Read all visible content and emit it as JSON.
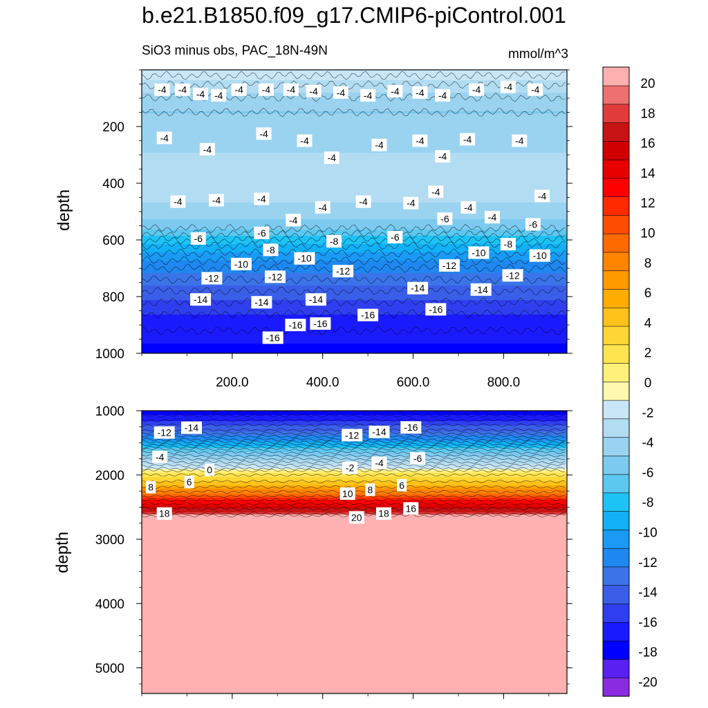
{
  "chart_data": {
    "type": "contour",
    "title": "b.e21.B1850.f09_g17.CMIP6-piControl.001",
    "subtitle": "SiO3 minus obs, PAC_18N-49N",
    "units": "mmol/m^3",
    "ylabel": "depth",
    "panels": [
      {
        "name": "upper",
        "ylim": [
          0,
          1000
        ],
        "y_inverted": true,
        "xlim": [
          0,
          940
        ],
        "yticks": [
          200,
          400,
          600,
          800,
          1000
        ],
        "xticks": [
          200,
          400,
          600,
          800
        ],
        "xtick_labels": [
          "200.0",
          "400.0",
          "600.0",
          "800.0"
        ],
        "depth_levels": [
          {
            "depth": 20,
            "value": -2
          },
          {
            "depth": 70,
            "value": -3.5
          },
          {
            "depth": 150,
            "value": -5
          },
          {
            "depth": 250,
            "value": -4
          },
          {
            "depth": 400,
            "value": -3
          },
          {
            "depth": 500,
            "value": -4
          },
          {
            "depth": 560,
            "value": -6
          },
          {
            "depth": 620,
            "value": -9
          },
          {
            "depth": 700,
            "value": -12
          },
          {
            "depth": 780,
            "value": -14
          },
          {
            "depth": 860,
            "value": -16
          },
          {
            "depth": 920,
            "value": -17
          },
          {
            "depth": 1000,
            "value": -17.5
          }
        ],
        "contour_labels": [
          {
            "x": 45,
            "depth": 70,
            "text": "-4"
          },
          {
            "x": 90,
            "depth": 70,
            "text": "-4"
          },
          {
            "x": 130,
            "depth": 85,
            "text": "-4"
          },
          {
            "x": 170,
            "depth": 90,
            "text": "-4"
          },
          {
            "x": 215,
            "depth": 70,
            "text": "-4"
          },
          {
            "x": 275,
            "depth": 70,
            "text": "-4"
          },
          {
            "x": 330,
            "depth": 70,
            "text": "-4"
          },
          {
            "x": 380,
            "depth": 75,
            "text": "-4"
          },
          {
            "x": 440,
            "depth": 80,
            "text": "-4"
          },
          {
            "x": 500,
            "depth": 90,
            "text": "-4"
          },
          {
            "x": 560,
            "depth": 75,
            "text": "-4"
          },
          {
            "x": 615,
            "depth": 80,
            "text": "-4"
          },
          {
            "x": 665,
            "depth": 90,
            "text": "-4"
          },
          {
            "x": 740,
            "depth": 70,
            "text": "-4"
          },
          {
            "x": 810,
            "depth": 60,
            "text": "-4"
          },
          {
            "x": 870,
            "depth": 70,
            "text": "-4"
          },
          {
            "x": 50,
            "depth": 240,
            "text": "-4"
          },
          {
            "x": 145,
            "depth": 280,
            "text": "-4"
          },
          {
            "x": 270,
            "depth": 225,
            "text": "-4"
          },
          {
            "x": 360,
            "depth": 250,
            "text": "-4"
          },
          {
            "x": 420,
            "depth": 310,
            "text": "-4"
          },
          {
            "x": 525,
            "depth": 265,
            "text": "-4"
          },
          {
            "x": 615,
            "depth": 250,
            "text": "-4"
          },
          {
            "x": 665,
            "depth": 305,
            "text": "-4"
          },
          {
            "x": 720,
            "depth": 245,
            "text": "-4"
          },
          {
            "x": 835,
            "depth": 250,
            "text": "-4"
          },
          {
            "x": 80,
            "depth": 465,
            "text": "-4"
          },
          {
            "x": 165,
            "depth": 460,
            "text": "-4"
          },
          {
            "x": 265,
            "depth": 455,
            "text": "-4"
          },
          {
            "x": 335,
            "depth": 530,
            "text": "-4"
          },
          {
            "x": 400,
            "depth": 485,
            "text": "-4"
          },
          {
            "x": 490,
            "depth": 465,
            "text": "-4"
          },
          {
            "x": 595,
            "depth": 470,
            "text": "-4"
          },
          {
            "x": 650,
            "depth": 430,
            "text": "-4"
          },
          {
            "x": 722,
            "depth": 485,
            "text": "-4"
          },
          {
            "x": 775,
            "depth": 520,
            "text": "-4"
          },
          {
            "x": 885,
            "depth": 445,
            "text": "-4"
          },
          {
            "x": 125,
            "depth": 595,
            "text": "-6"
          },
          {
            "x": 265,
            "depth": 575,
            "text": "-6"
          },
          {
            "x": 560,
            "depth": 590,
            "text": "-6"
          },
          {
            "x": 670,
            "depth": 525,
            "text": "-6"
          },
          {
            "x": 865,
            "depth": 545,
            "text": "-6"
          },
          {
            "x": 285,
            "depth": 635,
            "text": "-8"
          },
          {
            "x": 425,
            "depth": 605,
            "text": "-8"
          },
          {
            "x": 810,
            "depth": 615,
            "text": "-8"
          },
          {
            "x": 220,
            "depth": 685,
            "text": "-10"
          },
          {
            "x": 360,
            "depth": 665,
            "text": "-10"
          },
          {
            "x": 745,
            "depth": 645,
            "text": "-10"
          },
          {
            "x": 880,
            "depth": 655,
            "text": "-10"
          },
          {
            "x": 155,
            "depth": 735,
            "text": "-12"
          },
          {
            "x": 295,
            "depth": 730,
            "text": "-12"
          },
          {
            "x": 445,
            "depth": 710,
            "text": "-12"
          },
          {
            "x": 680,
            "depth": 690,
            "text": "-12"
          },
          {
            "x": 820,
            "depth": 725,
            "text": "-12"
          },
          {
            "x": 130,
            "depth": 810,
            "text": "-14"
          },
          {
            "x": 265,
            "depth": 820,
            "text": "-14"
          },
          {
            "x": 385,
            "depth": 810,
            "text": "-14"
          },
          {
            "x": 610,
            "depth": 770,
            "text": "-14"
          },
          {
            "x": 750,
            "depth": 775,
            "text": "-14"
          },
          {
            "x": 340,
            "depth": 900,
            "text": "-16"
          },
          {
            "x": 395,
            "depth": 895,
            "text": "-16"
          },
          {
            "x": 500,
            "depth": 865,
            "text": "-16"
          },
          {
            "x": 650,
            "depth": 845,
            "text": "-16"
          },
          {
            "x": 290,
            "depth": 945,
            "text": "-16"
          }
        ]
      },
      {
        "name": "lower",
        "ylim": [
          1000,
          5400
        ],
        "y_inverted": true,
        "xlim": [
          0,
          940
        ],
        "yticks": [
          1000,
          2000,
          3000,
          4000,
          5000
        ],
        "depth_levels": [
          {
            "depth": 1000,
            "value": -18
          },
          {
            "depth": 1150,
            "value": -16
          },
          {
            "depth": 1300,
            "value": -14
          },
          {
            "depth": 1450,
            "value": -11
          },
          {
            "depth": 1600,
            "value": -7
          },
          {
            "depth": 1750,
            "value": -4
          },
          {
            "depth": 1900,
            "value": -1
          },
          {
            "depth": 2000,
            "value": 2
          },
          {
            "depth": 2150,
            "value": 5
          },
          {
            "depth": 2300,
            "value": 9
          },
          {
            "depth": 2450,
            "value": 14
          },
          {
            "depth": 2600,
            "value": 18
          },
          {
            "depth": 2650,
            "value": 21
          },
          {
            "depth": 5400,
            "value": 21
          }
        ],
        "contour_labels": [
          {
            "x": 50,
            "depth": 1340,
            "text": "-12"
          },
          {
            "x": 110,
            "depth": 1265,
            "text": "-14"
          },
          {
            "x": 465,
            "depth": 1380,
            "text": "-12"
          },
          {
            "x": 525,
            "depth": 1330,
            "text": "-14"
          },
          {
            "x": 595,
            "depth": 1260,
            "text": "-16"
          },
          {
            "x": 40,
            "depth": 1720,
            "text": "-4"
          },
          {
            "x": 460,
            "depth": 1890,
            "text": "-2"
          },
          {
            "x": 525,
            "depth": 1810,
            "text": "-4"
          },
          {
            "x": 610,
            "depth": 1740,
            "text": "-6"
          },
          {
            "x": 150,
            "depth": 1920,
            "text": "0"
          },
          {
            "x": 105,
            "depth": 2110,
            "text": "6"
          },
          {
            "x": 20,
            "depth": 2190,
            "text": "8"
          },
          {
            "x": 455,
            "depth": 2290,
            "text": "10"
          },
          {
            "x": 505,
            "depth": 2230,
            "text": "8"
          },
          {
            "x": 575,
            "depth": 2160,
            "text": "6"
          },
          {
            "x": 50,
            "depth": 2600,
            "text": "18"
          },
          {
            "x": 475,
            "depth": 2660,
            "text": "20"
          },
          {
            "x": 535,
            "depth": 2600,
            "text": "18"
          },
          {
            "x": 595,
            "depth": 2520,
            "text": "16"
          }
        ]
      }
    ],
    "colorbar": {
      "levels": [
        -20,
        -18,
        -16,
        -14,
        -12,
        -10,
        -8,
        -6,
        -4,
        -2,
        0,
        2,
        4,
        6,
        8,
        10,
        12,
        14,
        16,
        18,
        20
      ],
      "tick_labels": [
        "20",
        "18",
        "16",
        "14",
        "12",
        "10",
        "8",
        "6",
        "4",
        "2",
        "0",
        "-2",
        "-4",
        "-6",
        "-8",
        "-10",
        "-12",
        "-14",
        "-16",
        "-18",
        "-20"
      ],
      "colors_bottom_to_top": [
        "#8a2be2",
        "#5a20f0",
        "#0000ff",
        "#1a1aff",
        "#2f3fef",
        "#3a5ee8",
        "#3a74e8",
        "#1e88f0",
        "#1a9af5",
        "#12b0f5",
        "#1ec3f5",
        "#5cc8f0",
        "#7ccaf0",
        "#9ad3f0",
        "#b2dcf2",
        "#c8e6f6",
        "#fff9b0",
        "#fff07a",
        "#ffe450",
        "#ffd633",
        "#ffc21a",
        "#ffae00",
        "#ff9900",
        "#ff8400",
        "#ff6a00",
        "#ff4d00",
        "#ff2a00",
        "#ff0000",
        "#e60000",
        "#d00000",
        "#c81414",
        "#e03c3c",
        "#ee7070",
        "#ffb0b0"
      ]
    }
  }
}
